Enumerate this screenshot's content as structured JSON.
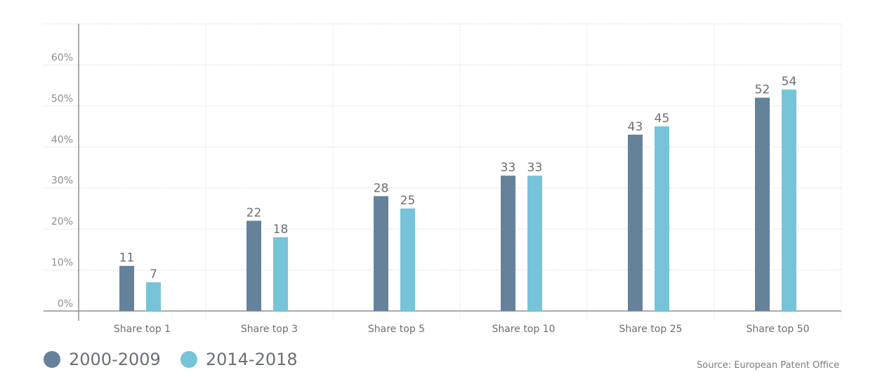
{
  "chart_data": {
    "type": "bar",
    "categories": [
      "Share top 1",
      "Share top 3",
      "Share top 5",
      "Share top 10",
      "Share top 25",
      "Share top 50"
    ],
    "series": [
      {
        "name": "2000-2009",
        "values": [
          11,
          22,
          28,
          33,
          43,
          52
        ],
        "color": "#65829a"
      },
      {
        "name": "2014-2018",
        "values": [
          7,
          18,
          25,
          33,
          45,
          54
        ],
        "color": "#77c4d8"
      }
    ],
    "y_ticks": [
      "0%",
      "10%",
      "20%",
      "30%",
      "40%",
      "50%",
      "60%"
    ],
    "ylim": [
      0,
      70
    ],
    "grid": true,
    "legend_position": "bottom-left",
    "source": "Source: European Patent Office"
  }
}
